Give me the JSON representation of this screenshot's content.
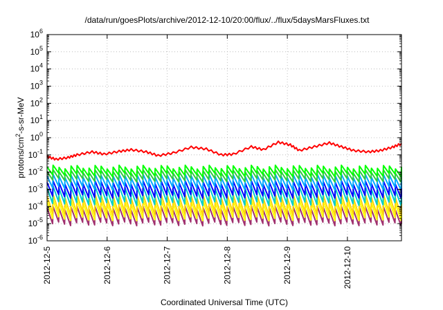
{
  "chart_data": {
    "type": "line",
    "title": "/data/run/goesPlots/archive/2012-12-10/20:00/flux/../flux/5daysMarsFluxes.txt",
    "xlabel": "Coordinated Universal Time (UTC)",
    "ylabel": "protons/cm2-s-sr-MeV",
    "ylabel_main": "protons/cm",
    "ylabel_sup": "2",
    "ylabel_rest": "-s-sr-MeV",
    "yscale": "log",
    "grid": true,
    "x_ticks": [
      "2012-12-5",
      "2012-12-6",
      "2012-12-7",
      "2012-12-8",
      "2012-12-9",
      "2012-12-10"
    ],
    "xlim_days": [
      0,
      5.9
    ],
    "y_ticks": [
      {
        "base": "10",
        "exp": "-6",
        "value": 1e-06
      },
      {
        "base": "10",
        "exp": "-5",
        "value": 1e-05
      },
      {
        "base": "10",
        "exp": "-4",
        "value": 0.0001
      },
      {
        "base": "10",
        "exp": "-3",
        "value": 0.001
      },
      {
        "base": "10",
        "exp": "-2",
        "value": 0.01
      },
      {
        "base": "10",
        "exp": "-1",
        "value": 0.1
      },
      {
        "base": "10",
        "exp": "0",
        "value": 1
      },
      {
        "base": "10",
        "exp": "1",
        "value": 10
      },
      {
        "base": "10",
        "exp": "2",
        "value": 100
      },
      {
        "base": "10",
        "exp": "3",
        "value": 1000
      },
      {
        "base": "10",
        "exp": "4",
        "value": 10000
      },
      {
        "base": "10",
        "exp": "5",
        "value": 100000
      },
      {
        "base": "10",
        "exp": "6",
        "value": 1000000
      }
    ],
    "ylim": [
      1e-06,
      1000000.0
    ],
    "sawtooth_period_days": 0.1,
    "series": [
      {
        "color": "#ff0000",
        "width": 2,
        "kind": "envelope",
        "points": [
          [
            0.0,
            0.08
          ],
          [
            0.15,
            0.055
          ],
          [
            0.35,
            0.07
          ],
          [
            0.5,
            0.1
          ],
          [
            0.75,
            0.15
          ],
          [
            0.95,
            0.11
          ],
          [
            1.2,
            0.16
          ],
          [
            1.4,
            0.2
          ],
          [
            1.65,
            0.15
          ],
          [
            1.85,
            0.09
          ],
          [
            2.1,
            0.13
          ],
          [
            2.4,
            0.28
          ],
          [
            2.65,
            0.22
          ],
          [
            2.9,
            0.1
          ],
          [
            3.1,
            0.11
          ],
          [
            3.4,
            0.3
          ],
          [
            3.6,
            0.2
          ],
          [
            3.85,
            0.55
          ],
          [
            4.05,
            0.38
          ],
          [
            4.2,
            0.18
          ],
          [
            4.45,
            0.3
          ],
          [
            4.7,
            0.5
          ],
          [
            4.9,
            0.3
          ],
          [
            5.1,
            0.18
          ],
          [
            5.35,
            0.15
          ],
          [
            5.55,
            0.18
          ],
          [
            5.75,
            0.28
          ],
          [
            5.9,
            0.45
          ]
        ]
      },
      {
        "color": "#00ff00",
        "width": 2,
        "kind": "sawtooth",
        "top": 0.02,
        "bottom": 0.007
      },
      {
        "color": "#2ecc40",
        "width": 2,
        "kind": "sawtooth",
        "top": 0.011,
        "bottom": 0.0035
      },
      {
        "color": "#00a8ff",
        "width": 2,
        "kind": "sawtooth",
        "top": 0.006,
        "bottom": 0.0012
      },
      {
        "color": "#0000ff",
        "width": 2,
        "kind": "sawtooth",
        "top": 0.0025,
        "bottom": 0.0004
      },
      {
        "color": "#00cccc",
        "width": 2,
        "kind": "sawtooth",
        "top": 0.0012,
        "bottom": 0.00015
      },
      {
        "color": "#ffd700",
        "width": 2,
        "kind": "sawtooth",
        "top": 0.0004,
        "bottom": 4e-05
      },
      {
        "color": "#ffff00",
        "width": 2,
        "kind": "sawtooth",
        "top": 0.0002,
        "bottom": 2e-05
      },
      {
        "color": "#a0306e",
        "width": 2,
        "kind": "sawtooth",
        "top": 8e-05,
        "bottom": 1e-05
      }
    ]
  }
}
